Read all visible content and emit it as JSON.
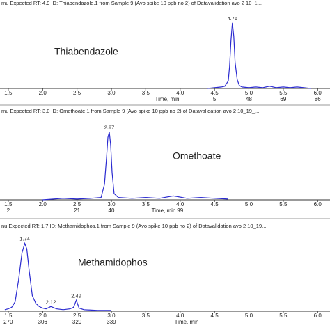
{
  "chart_data": [
    {
      "type": "line",
      "title": "mu Expected RT: 4.9 ID: Thiabendazole.1 from Sample 9 (Avo spike 10 ppb no 2) of Datavalidation avo 2 10_1...",
      "annotation": "Thiabendazole",
      "xlabel": "Time, min",
      "color": "#2a2ad0",
      "xlim": [
        1.38,
        6.18
      ],
      "ylim": [
        0,
        100
      ],
      "xticks": [
        1.5,
        {
          "value": 2,
          "label": "2.0"
        },
        2.5,
        {
          "value": 3,
          "label": "3.0"
        },
        3.5,
        {
          "value": 4,
          "label": "4.0"
        },
        4.5,
        {
          "value": 5,
          "label": "5.0"
        },
        5.5,
        {
          "value": 6,
          "label": "6.0"
        }
      ],
      "scan_labels": [
        {
          "value": 4.5,
          "label": "5"
        },
        {
          "value": 5,
          "label": "48"
        },
        {
          "value": 5.5,
          "label": "69"
        },
        {
          "value": 6,
          "label": "86"
        }
      ],
      "x": [
        4.4,
        4.5,
        4.6,
        4.65,
        4.7,
        4.72,
        4.74,
        4.76,
        4.78,
        4.8,
        4.83,
        4.86,
        4.9,
        5.0,
        5.1,
        5.2,
        5.3,
        5.4,
        5.5,
        5.6,
        5.7,
        5.8,
        5.9
      ],
      "values": [
        0,
        1,
        2,
        3,
        10,
        30,
        65,
        88,
        70,
        35,
        12,
        4,
        2,
        1,
        2,
        1,
        3,
        1,
        2,
        1,
        2,
        1,
        0
      ],
      "peaks": [
        4.76
      ]
    },
    {
      "type": "line",
      "title": "mu Expected RT: 3.0 ID: Omethoate.1 from Sample 9 (Avo spike 10 ppb no 2) of Datavalidation avo 2 10_19_...",
      "annotation": "Omethoate",
      "xlabel": "Time, min",
      "color": "#2a2ad0",
      "xlim": [
        1.38,
        6.18
      ],
      "ylim": [
        0,
        100
      ],
      "xticks": [
        1.5,
        {
          "value": 2,
          "label": "2.0"
        },
        2.5,
        {
          "value": 3,
          "label": "3.0"
        },
        3.5,
        {
          "value": 4,
          "label": "4.0"
        },
        4.5,
        {
          "value": 5,
          "label": "5.0"
        },
        5.5,
        {
          "value": 6,
          "label": "6.0"
        }
      ],
      "scan_labels": [
        {
          "value": 1.5,
          "label": "2"
        },
        {
          "value": 2.5,
          "label": "21"
        },
        {
          "value": 3,
          "label": "40"
        },
        {
          "value": 4,
          "label": "99"
        }
      ],
      "x": [
        2.0,
        2.3,
        2.5,
        2.7,
        2.85,
        2.9,
        2.93,
        2.95,
        2.97,
        2.99,
        3.01,
        3.04,
        3.1,
        3.3,
        3.5,
        3.7,
        3.9,
        4.1,
        4.3,
        4.5,
        4.7
      ],
      "values": [
        0,
        2,
        1,
        2,
        3,
        20,
        55,
        80,
        87,
        70,
        35,
        8,
        3,
        2,
        3,
        2,
        5,
        2,
        3,
        2,
        1
      ],
      "peaks": [
        2.97
      ]
    },
    {
      "type": "line",
      "title": "nu Expected RT: 1.7 ID: Methamidophos.1 from Sample 9 (Avo spike 10 ppb no 2) of Datavalidation avo 2 10_19...",
      "annotation": "Methamidophos",
      "xlabel": "Time, min",
      "color": "#2a2ad0",
      "xlim": [
        1.38,
        6.18
      ],
      "ylim": [
        0,
        100
      ],
      "xticks": [
        1.5,
        {
          "value": 2,
          "label": "2.0"
        },
        2.5,
        {
          "value": 3,
          "label": "3.0"
        },
        3.5,
        {
          "value": 4,
          "label": "4.0"
        },
        4.5,
        {
          "value": 5,
          "label": "5.0"
        },
        5.5,
        {
          "value": 6,
          "label": "6.0"
        }
      ],
      "scan_labels": [
        {
          "value": 1.5,
          "label": "270"
        },
        {
          "value": 2,
          "label": "306"
        },
        {
          "value": 2.5,
          "label": "329"
        },
        {
          "value": 3,
          "label": "339"
        }
      ],
      "x": [
        1.45,
        1.5,
        1.55,
        1.6,
        1.65,
        1.7,
        1.74,
        1.77,
        1.8,
        1.85,
        1.9,
        1.95,
        2.0,
        2.05,
        2.12,
        2.2,
        2.3,
        2.4,
        2.45,
        2.49,
        2.53,
        2.6,
        2.8,
        3.0
      ],
      "values": [
        2,
        3,
        5,
        12,
        40,
        75,
        87,
        80,
        55,
        20,
        10,
        6,
        4,
        3,
        6,
        3,
        2,
        3,
        5,
        14,
        4,
        2,
        1,
        1
      ],
      "peaks": [
        1.74,
        2.12,
        2.49
      ]
    }
  ]
}
